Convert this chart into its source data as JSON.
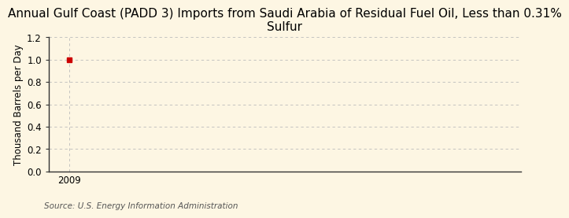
{
  "title": "Annual Gulf Coast (PADD 3) Imports from Saudi Arabia of Residual Fuel Oil, Less than 0.31%\nSulfur",
  "ylabel": "Thousand Barrels per Day",
  "source": "Source: U.S. Energy Information Administration",
  "x_values": [
    2009
  ],
  "y_values": [
    1.0
  ],
  "point_color": "#cc0000",
  "xlim": [
    2008.4,
    2022
  ],
  "ylim": [
    0.0,
    1.2
  ],
  "yticks": [
    0.0,
    0.2,
    0.4,
    0.6,
    0.8,
    1.0,
    1.2
  ],
  "xticks": [
    2009
  ],
  "background_color": "#fdf6e3",
  "grid_color": "#bbbbbb",
  "spine_color": "#333333",
  "title_fontsize": 11,
  "label_fontsize": 8.5,
  "tick_fontsize": 8.5,
  "source_fontsize": 7.5
}
